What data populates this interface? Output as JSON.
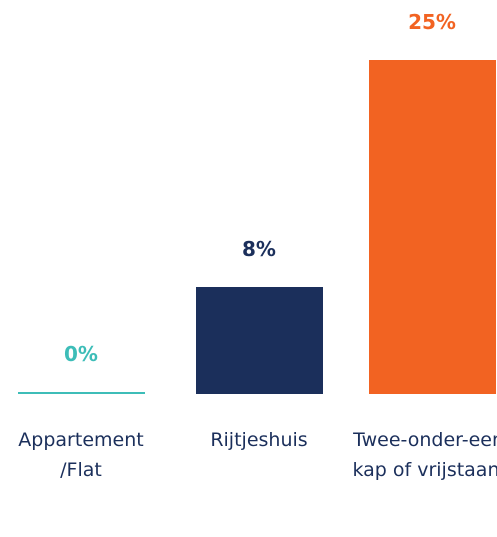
{
  "chart_data": {
    "type": "bar",
    "categories": [
      "Appartement /Flat",
      "Rijtjeshuis",
      "Twee-onder-een-kap of vrijstaand"
    ],
    "values": [
      0,
      8,
      25
    ],
    "value_labels": [
      "0%",
      "8%",
      "25%"
    ],
    "colors": [
      "#3dbdb8",
      "#1b2f5b",
      "#f26322"
    ]
  }
}
